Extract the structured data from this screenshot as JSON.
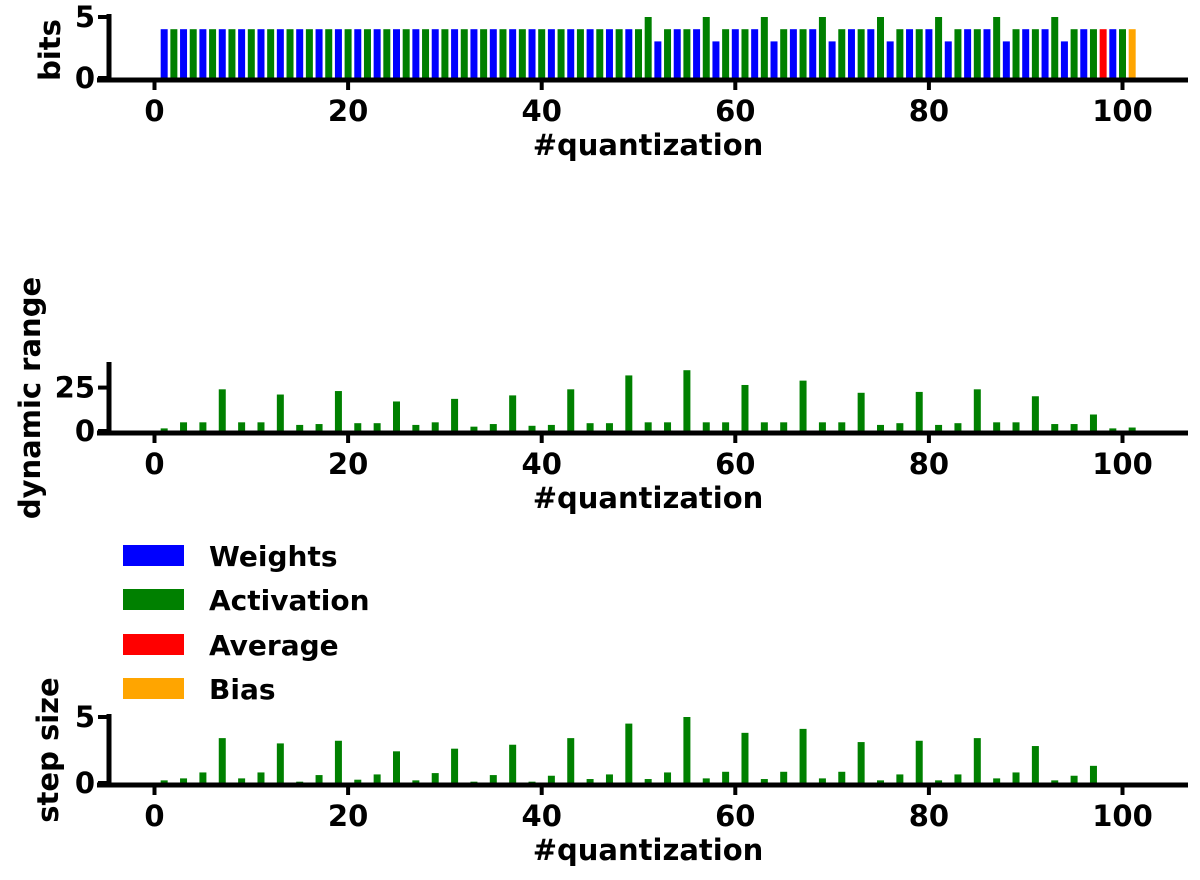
{
  "chart_data": [
    {
      "type": "bar",
      "ylabel": "bits",
      "xlabel": "#quantization",
      "xlim": [
        -5,
        107
      ],
      "ylim": [
        0,
        5.0
      ],
      "xticks": [
        0,
        20,
        40,
        60,
        80,
        100
      ],
      "yticks": [
        0,
        5
      ],
      "x": [
        1,
        2,
        3,
        4,
        5,
        6,
        7,
        8,
        9,
        10,
        11,
        12,
        13,
        14,
        15,
        16,
        17,
        18,
        19,
        20,
        21,
        22,
        23,
        24,
        25,
        26,
        27,
        28,
        29,
        30,
        31,
        32,
        33,
        34,
        35,
        36,
        37,
        38,
        39,
        40,
        41,
        42,
        43,
        44,
        45,
        46,
        47,
        48,
        49,
        50,
        51,
        52,
        53,
        54,
        55,
        56,
        57,
        58,
        59,
        60,
        61,
        62,
        63,
        64,
        65,
        66,
        67,
        68,
        69,
        70,
        71,
        72,
        73,
        74,
        75,
        76,
        77,
        78,
        79,
        80,
        81,
        82,
        83,
        84,
        85,
        86,
        87,
        88,
        89,
        90,
        91,
        92,
        93,
        94,
        95,
        96,
        97,
        98,
        99,
        100,
        101
      ],
      "values": [
        4,
        4,
        4,
        4,
        4,
        4,
        4,
        4,
        4,
        4,
        4,
        4,
        4,
        4,
        4,
        4,
        4,
        4,
        4,
        4,
        4,
        4,
        4,
        4,
        4,
        4,
        4,
        4,
        4,
        4,
        4,
        4,
        4,
        4,
        4,
        4,
        4,
        4,
        4,
        4,
        4,
        4,
        4,
        4,
        4,
        4,
        4,
        4,
        4,
        4,
        5,
        3,
        4,
        4,
        4,
        4,
        5,
        3,
        4,
        4,
        4,
        4,
        5,
        3,
        4,
        4,
        4,
        4,
        5,
        3,
        4,
        4,
        4,
        4,
        5,
        3,
        4,
        4,
        4,
        4,
        5,
        3,
        4,
        4,
        4,
        4,
        5,
        3,
        4,
        4,
        4,
        4,
        5,
        3,
        4,
        4,
        4,
        4,
        4,
        4,
        4
      ],
      "categories": [
        "W",
        "A",
        "W",
        "A",
        "W",
        "A",
        "W",
        "A",
        "W",
        "A",
        "W",
        "A",
        "W",
        "A",
        "W",
        "A",
        "W",
        "A",
        "W",
        "A",
        "W",
        "A",
        "W",
        "A",
        "W",
        "A",
        "W",
        "A",
        "W",
        "A",
        "W",
        "A",
        "W",
        "A",
        "W",
        "A",
        "W",
        "A",
        "W",
        "A",
        "W",
        "A",
        "W",
        "A",
        "W",
        "A",
        "W",
        "A",
        "W",
        "A",
        "A",
        "W",
        "A",
        "W",
        "A",
        "W",
        "A",
        "W",
        "A",
        "W",
        "A",
        "W",
        "A",
        "W",
        "A",
        "W",
        "A",
        "W",
        "A",
        "W",
        "A",
        "W",
        "A",
        "W",
        "A",
        "W",
        "A",
        "W",
        "A",
        "W",
        "A",
        "W",
        "A",
        "W",
        "A",
        "W",
        "A",
        "W",
        "A",
        "W",
        "A",
        "W",
        "A",
        "W",
        "A",
        "W",
        "A",
        "R",
        "W",
        "A",
        "B"
      ]
    },
    {
      "type": "bar",
      "ylabel": "dynamic range",
      "xlabel": "#quantization",
      "xlim": [
        -5,
        107
      ],
      "ylim": [
        0,
        38
      ],
      "xticks": [
        0,
        20,
        40,
        60,
        80,
        100
      ],
      "yticks": [
        0,
        25
      ],
      "color_category": "A",
      "x": [
        1,
        3,
        5,
        7,
        9,
        11,
        13,
        15,
        17,
        19,
        21,
        23,
        25,
        27,
        29,
        31,
        33,
        35,
        37,
        39,
        41,
        43,
        45,
        47,
        49,
        51,
        53,
        55,
        57,
        59,
        61,
        63,
        65,
        67,
        69,
        71,
        73,
        75,
        77,
        79,
        81,
        83,
        85,
        87,
        89,
        91,
        93,
        95,
        97,
        99,
        101
      ],
      "values": [
        1.5,
        5,
        5,
        24,
        5,
        5,
        21,
        3.5,
        4,
        23,
        4.5,
        4.5,
        17,
        3.5,
        5,
        18.5,
        2.5,
        4,
        20.5,
        3,
        3.5,
        24,
        4.5,
        4.5,
        32,
        5,
        5,
        35,
        5,
        5,
        26.5,
        5,
        5,
        29,
        5,
        5,
        22,
        3.5,
        4.5,
        22.5,
        3.5,
        4.5,
        24,
        5,
        5,
        20,
        4,
        4,
        9.5,
        1.5,
        2
      ]
    },
    {
      "type": "bar",
      "ylabel": "step size",
      "xlabel": "#quantization",
      "xlim": [
        -5,
        107
      ],
      "ylim": [
        0,
        5.0
      ],
      "xticks": [
        0,
        20,
        40,
        60,
        80,
        100
      ],
      "yticks": [
        0,
        5
      ],
      "color_category": "A",
      "x": [
        1,
        3,
        5,
        7,
        9,
        11,
        13,
        15,
        17,
        19,
        21,
        23,
        25,
        27,
        29,
        31,
        33,
        35,
        37,
        39,
        41,
        43,
        45,
        47,
        49,
        51,
        53,
        55,
        57,
        59,
        61,
        63,
        65,
        67,
        69,
        71,
        73,
        75,
        77,
        79,
        81,
        83,
        85,
        87,
        89,
        91,
        93,
        95,
        97
      ],
      "values": [
        0.2,
        0.35,
        0.8,
        3.4,
        0.35,
        0.8,
        3.0,
        0.1,
        0.6,
        3.2,
        0.25,
        0.65,
        2.4,
        0.2,
        0.75,
        2.6,
        0.1,
        0.6,
        2.9,
        0.1,
        0.55,
        3.4,
        0.3,
        0.65,
        4.5,
        0.3,
        0.8,
        5.0,
        0.35,
        0.85,
        3.8,
        0.3,
        0.85,
        4.1,
        0.35,
        0.85,
        3.1,
        0.2,
        0.65,
        3.2,
        0.2,
        0.65,
        3.4,
        0.35,
        0.8,
        2.8,
        0.2,
        0.55,
        1.3
      ]
    }
  ],
  "legend": {
    "placement": "upper-left of third panel",
    "items": [
      {
        "key": "W",
        "label": "Weights",
        "color": "#0000ff"
      },
      {
        "key": "A",
        "label": "Activation",
        "color": "#008000"
      },
      {
        "key": "R",
        "label": "Average",
        "color": "#ff0000"
      },
      {
        "key": "B",
        "label": "Bias",
        "color": "#ffa500"
      }
    ]
  }
}
